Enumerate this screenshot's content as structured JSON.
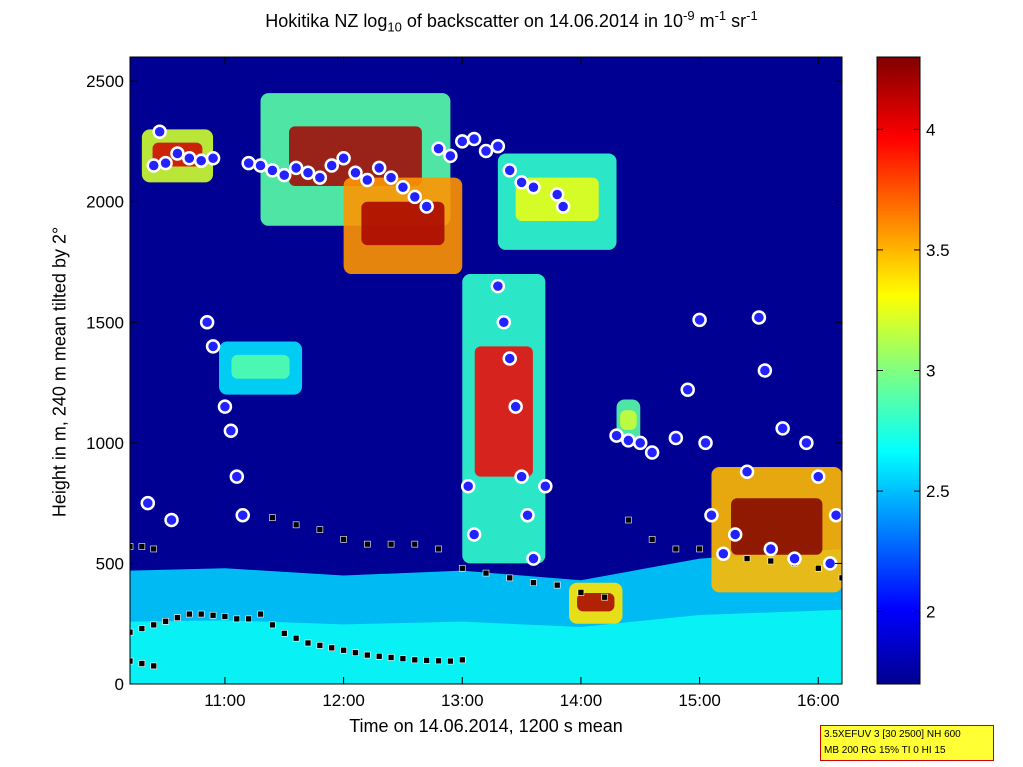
{
  "chart_data": {
    "type": "heatmap",
    "title_parts": {
      "pre": "Hokitika NZ log",
      "sub": "10",
      "mid": " of backscatter on 14.06.2014 in 10",
      "sup1": "-9",
      "mid2": " m",
      "sup2": "-1",
      "mid3": " sr",
      "sup3": "-1"
    },
    "xlabel": "Time on 14.06.2014, 1200 s mean",
    "ylabel": "Height in m, 240 m mean tilted by 2°",
    "xlim": [
      10.2,
      16.2
    ],
    "ylim": [
      0,
      2600
    ],
    "x_ticks": [
      11,
      12,
      13,
      14,
      15,
      16
    ],
    "x_tick_labels": [
      "11:00",
      "12:00",
      "13:00",
      "14:00",
      "15:00",
      "16:00"
    ],
    "y_ticks": [
      0,
      500,
      1000,
      1500,
      2000,
      2500
    ],
    "y_tick_labels": [
      "0",
      "500",
      "1000",
      "1500",
      "2000",
      "2500"
    ],
    "colorbar": {
      "clim": [
        1.7,
        4.3
      ],
      "ticks": [
        2,
        2.5,
        3,
        3.5,
        4
      ],
      "tick_labels": [
        "2",
        "2.5",
        "3",
        "3.5",
        "4"
      ],
      "colormap": "jet"
    },
    "background_value": 1.75,
    "surface_layer": {
      "x": [
        10.2,
        11.0,
        12.0,
        13.0,
        14.0,
        15.0,
        16.2
      ],
      "top_height": [
        470,
        480,
        450,
        470,
        430,
        520,
        560
      ],
      "value": 2.55
    },
    "cloud_regions": [
      {
        "x0": 10.3,
        "x1": 10.9,
        "y0": 2080,
        "y1": 2300,
        "value": 3.2,
        "core_value": 4.1
      },
      {
        "x0": 11.3,
        "x1": 12.9,
        "y0": 1900,
        "y1": 2450,
        "value": 2.9,
        "core_value": 4.2
      },
      {
        "x0": 12.0,
        "x1": 13.0,
        "y0": 1700,
        "y1": 2100,
        "value": 3.6,
        "core_value": 4.2
      },
      {
        "x0": 13.3,
        "x1": 14.3,
        "y0": 1800,
        "y1": 2200,
        "value": 2.8,
        "core_value": 3.3
      },
      {
        "x0": 10.95,
        "x1": 11.65,
        "y0": 1200,
        "y1": 1420,
        "value": 2.6,
        "core_value": 2.9
      },
      {
        "x0": 13.0,
        "x1": 13.7,
        "y0": 500,
        "y1": 1700,
        "value": 2.8,
        "core_value": 4.0
      },
      {
        "x0": 14.3,
        "x1": 14.5,
        "y0": 1000,
        "y1": 1180,
        "value": 2.9,
        "core_value": 3.2
      },
      {
        "x0": 15.1,
        "x1": 16.2,
        "y0": 380,
        "y1": 900,
        "value": 3.5,
        "core_value": 4.3
      },
      {
        "x0": 13.9,
        "x1": 14.35,
        "y0": 250,
        "y1": 420,
        "value": 3.4,
        "core_value": 4.2
      }
    ],
    "cloud_base_series": [
      {
        "marker": "circle-blue-white",
        "x": [
          10.4,
          10.45,
          10.5,
          10.6,
          10.7,
          10.8,
          10.9,
          11.2,
          11.3,
          11.4,
          11.5,
          11.6,
          11.7,
          11.8,
          11.9,
          12.0,
          12.1,
          12.2,
          12.3,
          12.4,
          12.5,
          12.6,
          12.7,
          12.8,
          12.9,
          13.0,
          13.1,
          13.2,
          13.3,
          13.4,
          13.5,
          13.6,
          13.8,
          13.85
        ],
        "y": [
          2150,
          2290,
          2160,
          2200,
          2180,
          2170,
          2180,
          2160,
          2150,
          2130,
          2110,
          2140,
          2120,
          2100,
          2150,
          2180,
          2120,
          2090,
          2140,
          2100,
          2060,
          2020,
          1980,
          2220,
          2190,
          2250,
          2260,
          2210,
          2230,
          2130,
          2080,
          2060,
          2030,
          1980
        ]
      },
      {
        "marker": "circle-blue-white",
        "x": [
          10.35,
          10.55,
          10.85,
          10.9,
          11.0,
          11.05,
          11.1,
          11.15,
          13.05,
          13.1,
          13.3,
          13.35,
          13.4,
          13.45,
          13.5,
          13.55,
          13.6,
          13.7,
          14.3,
          14.4,
          14.5,
          14.6,
          14.8,
          14.9,
          15.0,
          15.05,
          15.1,
          15.2,
          15.3,
          15.4,
          15.5,
          15.55,
          15.6,
          15.7,
          15.8,
          15.9,
          16.0,
          16.1,
          16.15
        ],
        "y": [
          750,
          680,
          1500,
          1400,
          1150,
          1050,
          860,
          700,
          820,
          620,
          1650,
          1500,
          1350,
          1150,
          860,
          700,
          520,
          820,
          1030,
          1010,
          1000,
          960,
          1020,
          1220,
          1510,
          1000,
          700,
          540,
          620,
          880,
          1520,
          1300,
          560,
          1060,
          520,
          1000,
          860,
          500,
          700
        ]
      }
    ],
    "aerosol_layer_series": [
      {
        "marker": "square-black",
        "x": [
          10.2,
          10.3,
          10.4,
          10.5,
          10.6,
          10.7,
          10.8,
          10.9,
          11.0,
          11.1,
          11.2,
          11.3,
          11.4,
          11.5,
          11.6,
          11.7,
          11.8,
          11.9,
          12.0,
          12.1,
          12.2,
          12.3,
          12.4,
          12.5,
          12.6,
          12.7,
          12.8,
          12.9,
          13.0
        ],
        "y": [
          215,
          230,
          245,
          260,
          275,
          290,
          290,
          285,
          280,
          270,
          270,
          290,
          245,
          210,
          190,
          170,
          160,
          150,
          140,
          130,
          120,
          115,
          110,
          105,
          100,
          98,
          96,
          95,
          100
        ]
      },
      {
        "marker": "square-black",
        "x": [
          10.2,
          10.3,
          10.4,
          11.4,
          11.6,
          11.8,
          12.0,
          12.2,
          12.4,
          12.6,
          12.8,
          13.0,
          13.2,
          13.4,
          13.6,
          13.8,
          14.0,
          14.2,
          14.4,
          14.6,
          14.8,
          15.0,
          15.2,
          15.4,
          15.6,
          15.8,
          16.0,
          16.2
        ],
        "y": [
          570,
          570,
          560,
          690,
          660,
          640,
          600,
          580,
          580,
          580,
          560,
          480,
          460,
          440,
          420,
          410,
          380,
          360,
          680,
          600,
          560,
          560,
          550,
          520,
          510,
          500,
          480,
          440
        ]
      },
      {
        "marker": "square-black",
        "x": [
          10.2,
          10.3,
          10.4
        ],
        "y": [
          95,
          85,
          75
        ]
      }
    ]
  }
}
